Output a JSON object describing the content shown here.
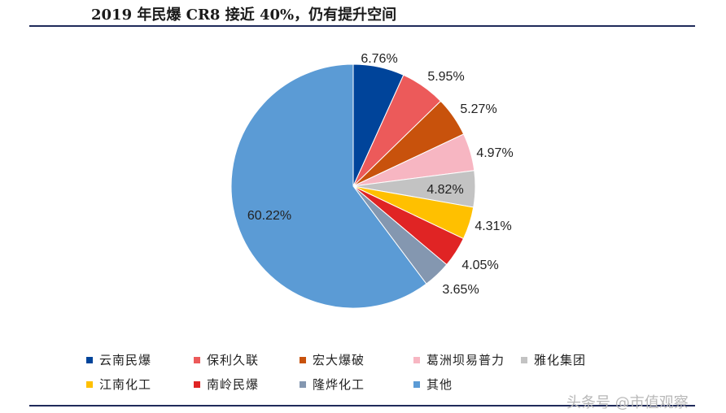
{
  "chart_data": {
    "type": "pie",
    "title": "2019 年民爆 CR8 接近 40%，仍有提升空间",
    "series": [
      {
        "name": "云南民爆",
        "value": 6.76,
        "label": "6.76%",
        "color": "#00449a"
      },
      {
        "name": "保利久联",
        "value": 5.95,
        "label": "5.95%",
        "color": "#ec5a5a"
      },
      {
        "name": "宏大爆破",
        "value": 5.27,
        "label": "5.27%",
        "color": "#c8520c"
      },
      {
        "name": "葛洲坝易普力",
        "value": 4.97,
        "label": "4.97%",
        "color": "#f7b6c2"
      },
      {
        "name": "雅化集团",
        "value": 4.82,
        "label": "4.82%",
        "color": "#c3c3c3"
      },
      {
        "name": "江南化工",
        "value": 4.31,
        "label": "4.31%",
        "color": "#ffc000"
      },
      {
        "name": "南岭民爆",
        "value": 4.05,
        "label": "4.05%",
        "color": "#e02424"
      },
      {
        "name": "隆烨化工",
        "value": 3.65,
        "label": "3.65%",
        "color": "#8497b0"
      },
      {
        "name": "其他",
        "value": 60.22,
        "label": "60.22%",
        "color": "#5b9bd5"
      }
    ],
    "legend_position": "bottom"
  },
  "watermark": "头条号 @市值观察"
}
